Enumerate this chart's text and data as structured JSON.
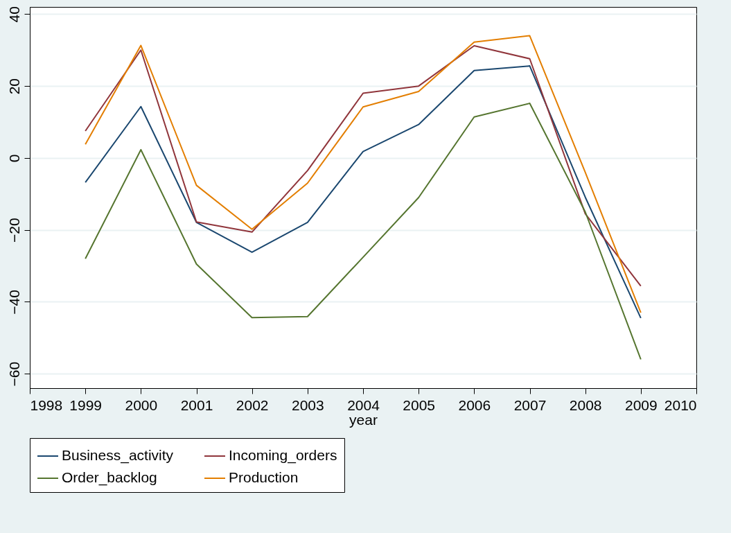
{
  "chart_data": {
    "type": "line",
    "xlabel": "year",
    "x": [
      1999,
      2000,
      2001,
      2002,
      2003,
      2004,
      2005,
      2006,
      2007,
      2008,
      2009
    ],
    "xlim": [
      1998,
      2010
    ],
    "xticks": [
      1998,
      1999,
      2000,
      2001,
      2002,
      2003,
      2004,
      2005,
      2006,
      2007,
      2008,
      2009,
      2010
    ],
    "ylim": [
      -64,
      42
    ],
    "yticks": [
      -60,
      -40,
      -20,
      0,
      20,
      40
    ],
    "grid": "y",
    "legend": "bottom",
    "marker": "none",
    "line_style": "solid",
    "series": [
      {
        "name": "Business_activity",
        "color": "#1a476f",
        "values": [
          -6.8,
          14.3,
          -17.9,
          -26.2,
          -17.9,
          1.8,
          9.3,
          24.3,
          25.6,
          -10.9,
          -44.5
        ]
      },
      {
        "name": "Incoming_orders",
        "color": "#90353b",
        "values": [
          7.5,
          30,
          -17.8,
          -20.6,
          -3.5,
          18,
          20,
          31.2,
          27.6,
          -15.5,
          -35.6
        ]
      },
      {
        "name": "Order_backlog",
        "color": "#55752f",
        "values": [
          -28,
          2.3,
          -29.5,
          -44.4,
          -44.1,
          -27.6,
          -11,
          11.4,
          15.2,
          -15,
          -56
        ]
      },
      {
        "name": "Production",
        "color": "#e37e00",
        "values": [
          3.8,
          31.3,
          -7.6,
          -19.8,
          -7,
          14.2,
          18.5,
          32.2,
          34,
          -4,
          -43
        ]
      }
    ]
  }
}
